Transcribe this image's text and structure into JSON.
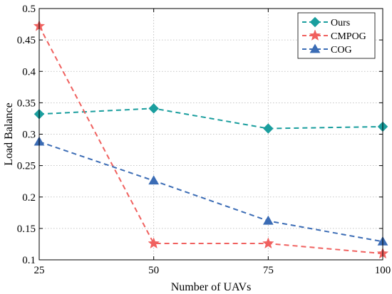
{
  "chart_data": {
    "type": "line",
    "xlabel": "Number of UAVs",
    "ylabel": "Load Balance",
    "x": [
      25,
      50,
      75,
      100
    ],
    "xlim": [
      25,
      100
    ],
    "ylim": [
      0.1,
      0.5
    ],
    "xticks": [
      "25",
      "50",
      "75",
      "100"
    ],
    "yticks": [
      "0.1",
      "0.15",
      "0.2",
      "0.25",
      "0.3",
      "0.35",
      "0.4",
      "0.45",
      "0.5"
    ],
    "grid": true,
    "legend_position": "top-right",
    "series": [
      {
        "name": "Ours",
        "values": [
          0.332,
          0.341,
          0.309,
          0.312
        ],
        "color": "#1a9e9e",
        "marker": "diamond"
      },
      {
        "name": "CMPOG",
        "values": [
          0.472,
          0.126,
          0.126,
          0.11
        ],
        "color": "#f0615f",
        "marker": "star"
      },
      {
        "name": "COG",
        "values": [
          0.288,
          0.226,
          0.162,
          0.129
        ],
        "color": "#3b6cb5",
        "marker": "triangle"
      }
    ]
  }
}
